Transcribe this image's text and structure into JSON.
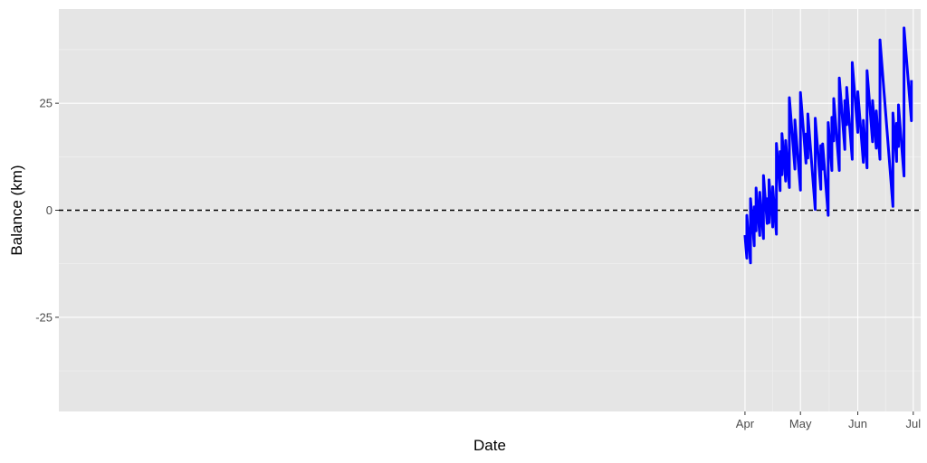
{
  "chart_data": {
    "type": "line",
    "title": "",
    "xlabel": "Date",
    "ylabel": "Balance (km)",
    "x_ticks": [
      {
        "label": "Apr",
        "date": "2024-04-01"
      },
      {
        "label": "May",
        "date": "2024-05-01"
      },
      {
        "label": "Jun",
        "date": "2024-06-01"
      },
      {
        "label": "Jul",
        "date": "2024-07-01"
      }
    ],
    "y_ticks": [
      25,
      0,
      -25
    ],
    "xlim": [
      "2023-03-27",
      "2024-07-05"
    ],
    "ylim": [
      -47,
      47
    ],
    "grid": true,
    "reference_line": {
      "y": 0,
      "style": "dashed",
      "color": "#000000"
    },
    "series": [
      {
        "color": "#0000ff",
        "points": [
          [
            "2024-04-01",
            -5.8
          ],
          [
            "2024-04-02",
            -11.2
          ],
          [
            "2024-04-02",
            -1.2
          ],
          [
            "2024-04-04",
            -12.3
          ],
          [
            "2024-04-04",
            2.7
          ],
          [
            "2024-04-06",
            -8.3
          ],
          [
            "2024-04-06",
            0.8
          ],
          [
            "2024-04-07",
            -4.8
          ],
          [
            "2024-04-07",
            5.2
          ],
          [
            "2024-04-09",
            -5.9
          ],
          [
            "2024-04-09",
            4.2
          ],
          [
            "2024-04-11",
            -6.6
          ],
          [
            "2024-04-11",
            8.1
          ],
          [
            "2024-04-13",
            -3.1
          ],
          [
            "2024-04-13",
            2.7
          ],
          [
            "2024-04-14",
            -2.9
          ],
          [
            "2024-04-14",
            7.1
          ],
          [
            "2024-04-16",
            -3.9
          ],
          [
            "2024-04-16",
            5.5
          ],
          [
            "2024-04-18",
            -5.6
          ],
          [
            "2024-04-18",
            15.6
          ],
          [
            "2024-04-20",
            4.6
          ],
          [
            "2024-04-20",
            13.7
          ],
          [
            "2024-04-21",
            8.3
          ],
          [
            "2024-04-21",
            17.9
          ],
          [
            "2024-04-23",
            6.8
          ],
          [
            "2024-04-23",
            16.3
          ],
          [
            "2024-04-25",
            5.3
          ],
          [
            "2024-04-25",
            26.3
          ],
          [
            "2024-04-28",
            9.6
          ],
          [
            "2024-04-28",
            21.1
          ],
          [
            "2024-05-01",
            4.7
          ],
          [
            "2024-05-01",
            27.5
          ],
          [
            "2024-05-04",
            11.0
          ],
          [
            "2024-05-04",
            17.8
          ],
          [
            "2024-05-05",
            12.2
          ],
          [
            "2024-05-05",
            22.5
          ],
          [
            "2024-05-09",
            0.2
          ],
          [
            "2024-05-09",
            21.5
          ],
          [
            "2024-05-12",
            4.9
          ],
          [
            "2024-05-12",
            15.1
          ],
          [
            "2024-05-13",
            9.6
          ],
          [
            "2024-05-13",
            15.5
          ],
          [
            "2024-05-16",
            -1.2
          ],
          [
            "2024-05-16",
            20.5
          ],
          [
            "2024-05-18",
            9.3
          ],
          [
            "2024-05-18",
            21.7
          ],
          [
            "2024-05-19",
            16.2
          ],
          [
            "2024-05-19",
            26.1
          ],
          [
            "2024-05-22",
            9.3
          ],
          [
            "2024-05-22",
            30.9
          ],
          [
            "2024-05-25",
            14.2
          ],
          [
            "2024-05-25",
            25.6
          ],
          [
            "2024-05-26",
            20.0
          ],
          [
            "2024-05-26",
            28.7
          ],
          [
            "2024-05-29",
            11.9
          ],
          [
            "2024-05-29",
            34.5
          ],
          [
            "2024-06-01",
            18.2
          ],
          [
            "2024-06-01",
            27.7
          ],
          [
            "2024-06-04",
            11.2
          ],
          [
            "2024-06-04",
            21.0
          ],
          [
            "2024-06-06",
            9.9
          ],
          [
            "2024-06-06",
            32.6
          ],
          [
            "2024-06-09",
            16.0
          ],
          [
            "2024-06-09",
            25.6
          ],
          [
            "2024-06-11",
            14.5
          ],
          [
            "2024-06-11",
            23.2
          ],
          [
            "2024-06-13",
            11.9
          ],
          [
            "2024-06-13",
            39.8
          ],
          [
            "2024-06-20",
            0.9
          ],
          [
            "2024-06-20",
            22.7
          ],
          [
            "2024-06-22",
            11.4
          ],
          [
            "2024-06-22",
            20.3
          ],
          [
            "2024-06-23",
            14.9
          ],
          [
            "2024-06-23",
            24.6
          ],
          [
            "2024-06-26",
            8.0
          ],
          [
            "2024-06-26",
            42.6
          ],
          [
            "2024-06-30",
            20.9
          ],
          [
            "2024-06-30",
            30.4
          ]
        ]
      }
    ]
  }
}
